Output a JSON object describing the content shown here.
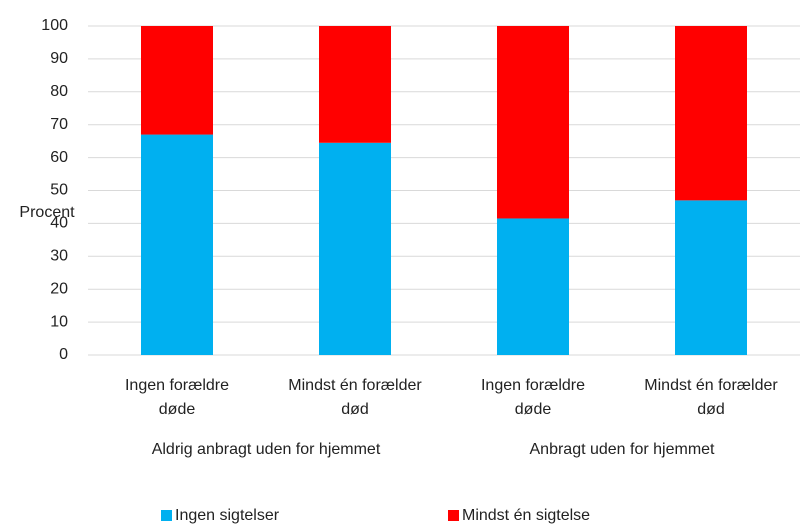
{
  "chart_data": {
    "type": "stacked_bar",
    "y_label": "Procent",
    "categories": [
      [
        "Ingen forældre",
        "døde"
      ],
      [
        "Mindst én forælder",
        "død"
      ],
      [
        "Ingen forældre",
        "døde"
      ],
      [
        "Mindst én forælder",
        "død"
      ]
    ],
    "groups": [
      "Aldrig anbragt uden for hjemmet",
      "Anbragt uden for hjemmet"
    ],
    "series": [
      {
        "name": "Ingen sigtelser",
        "color": "#00b0f0",
        "values": [
          67,
          64.5,
          41.5,
          47
        ]
      },
      {
        "name": "Mindst én sigtelse",
        "color": "#ff0000",
        "values": [
          33,
          35.5,
          58.5,
          53
        ]
      }
    ],
    "ylim": [
      0,
      100
    ],
    "yticks": [
      0,
      10,
      20,
      30,
      40,
      50,
      60,
      70,
      80,
      90,
      100
    ],
    "grid": true,
    "legend": "bottom"
  }
}
